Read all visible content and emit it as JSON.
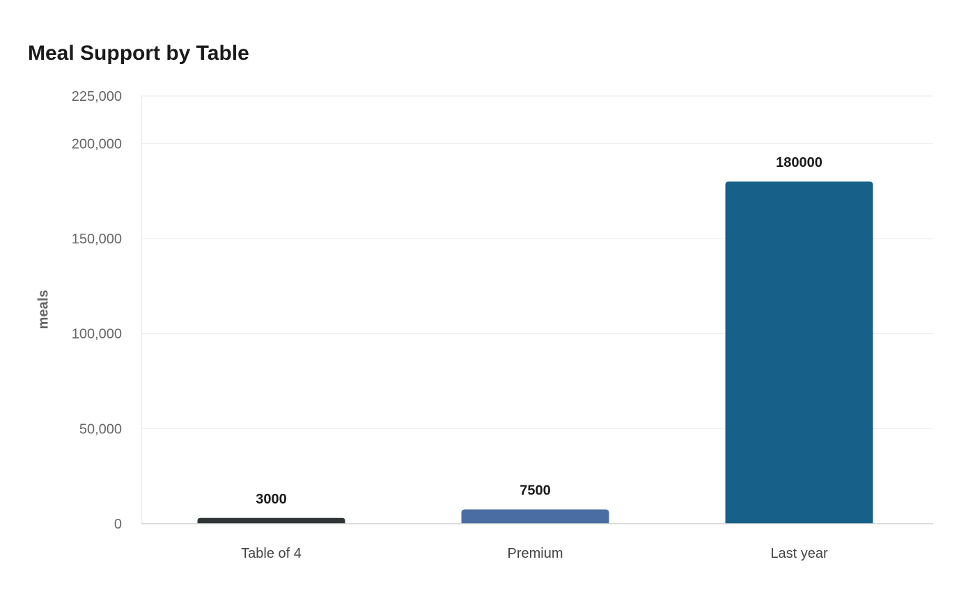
{
  "chart_data": {
    "type": "bar",
    "title": "Meal Support by Table",
    "xlabel": "",
    "ylabel": "meals",
    "categories": [
      "Table of 4",
      "Premium",
      "Last year"
    ],
    "values": [
      3000,
      7500,
      180000
    ],
    "data_labels": [
      "3000",
      "7500",
      "180000"
    ],
    "colors": [
      "#2f3536",
      "#4a6ea3",
      "#16608a"
    ],
    "ylim": [
      0,
      225000
    ],
    "yticks": [
      0,
      50000,
      100000,
      150000,
      200000,
      225000
    ],
    "ytick_labels": [
      "0",
      "50,000",
      "100,000",
      "150,000",
      "200,000",
      "225,000"
    ],
    "grid": true,
    "legend": "none"
  }
}
